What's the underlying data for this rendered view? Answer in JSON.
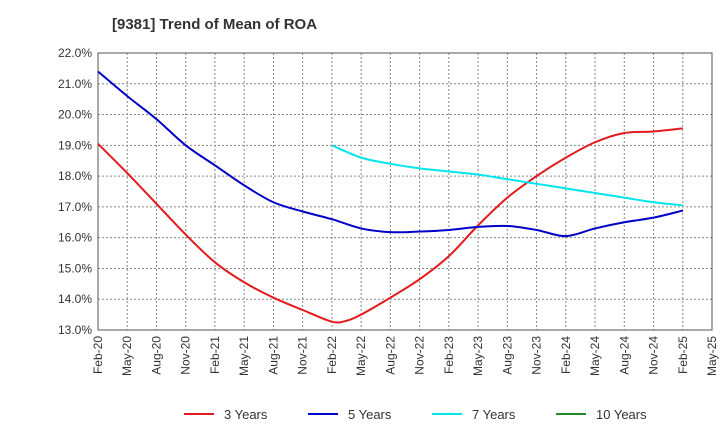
{
  "chart_data": {
    "type": "line",
    "title": "[9381]  Trend of Mean of ROA",
    "xlabel": "",
    "ylabel": "",
    "ylim": [
      13.0,
      22.0
    ],
    "y_ticks": [
      "22.0%",
      "21.0%",
      "20.0%",
      "19.0%",
      "18.0%",
      "17.0%",
      "16.0%",
      "15.0%",
      "14.0%",
      "13.0%"
    ],
    "y_tick_values": [
      22,
      21,
      20,
      19,
      18,
      17,
      16,
      15,
      14,
      13
    ],
    "x_ticks": [
      "Feb-20",
      "May-20",
      "Aug-20",
      "Nov-20",
      "Feb-21",
      "May-21",
      "Aug-21",
      "Nov-21",
      "Feb-22",
      "May-22",
      "Aug-22",
      "Nov-22",
      "Feb-23",
      "May-23",
      "Aug-23",
      "Nov-23",
      "Feb-24",
      "May-24",
      "Aug-24",
      "Nov-24",
      "Feb-25",
      "May-25"
    ],
    "grid": true,
    "legend_position": "bottom",
    "series": [
      {
        "name": "3 Years",
        "color": "#e31a1c",
        "x": [
          0,
          1,
          2,
          3,
          4,
          5,
          6,
          7,
          8,
          8.5,
          9,
          10,
          11,
          12,
          13,
          14,
          15,
          16,
          17,
          18,
          19,
          20
        ],
        "values": [
          19.05,
          18.1,
          17.1,
          16.1,
          15.2,
          14.55,
          14.05,
          13.65,
          13.27,
          13.3,
          13.5,
          14.05,
          14.65,
          15.4,
          16.4,
          17.3,
          18.0,
          18.6,
          19.1,
          19.4,
          19.45,
          19.55
        ]
      },
      {
        "name": "5 Years",
        "color": "#0000c8",
        "x": [
          0,
          1,
          2,
          3,
          4,
          5,
          6,
          7,
          8,
          9,
          10,
          11,
          12,
          13,
          14,
          15,
          16,
          17,
          18,
          19,
          20
        ],
        "values": [
          21.4,
          20.6,
          19.85,
          19.0,
          18.35,
          17.7,
          17.15,
          16.85,
          16.6,
          16.3,
          16.18,
          16.2,
          16.25,
          16.35,
          16.38,
          16.25,
          16.05,
          16.3,
          16.5,
          16.65,
          16.88
        ]
      },
      {
        "name": "7 Years",
        "color": "#00e5ee",
        "x": [
          8,
          9,
          10,
          11,
          12,
          13,
          14,
          15,
          16,
          17,
          18,
          19,
          20
        ],
        "values": [
          19.0,
          18.6,
          18.4,
          18.25,
          18.15,
          18.05,
          17.9,
          17.75,
          17.6,
          17.45,
          17.3,
          17.15,
          17.05
        ]
      },
      {
        "name": "10 Years",
        "color": "#228b22",
        "x": [],
        "values": []
      }
    ]
  }
}
